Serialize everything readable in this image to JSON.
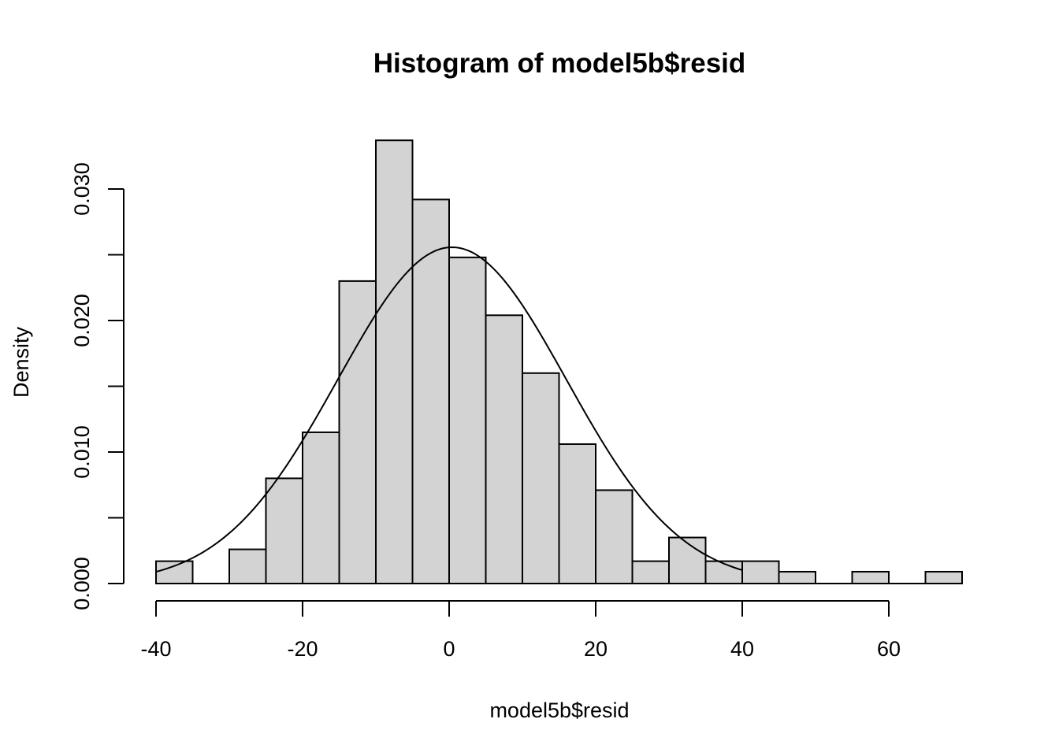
{
  "chart_data": {
    "type": "bar",
    "title": "Histogram of model5b$resid",
    "xlabel": "model5b$resid",
    "ylabel": "Density",
    "bins": [
      {
        "x0": -40,
        "x1": -35,
        "density": 0.0017
      },
      {
        "x0": -35,
        "x1": -30,
        "density": 0.0
      },
      {
        "x0": -30,
        "x1": -25,
        "density": 0.0026
      },
      {
        "x0": -25,
        "x1": -20,
        "density": 0.008
      },
      {
        "x0": -20,
        "x1": -15,
        "density": 0.0115
      },
      {
        "x0": -15,
        "x1": -10,
        "density": 0.023
      },
      {
        "x0": -10,
        "x1": -5,
        "density": 0.0337
      },
      {
        "x0": -5,
        "x1": 0,
        "density": 0.0292
      },
      {
        "x0": 0,
        "x1": 5,
        "density": 0.0248
      },
      {
        "x0": 5,
        "x1": 10,
        "density": 0.0204
      },
      {
        "x0": 10,
        "x1": 15,
        "density": 0.016
      },
      {
        "x0": 15,
        "x1": 20,
        "density": 0.0106
      },
      {
        "x0": 20,
        "x1": 25,
        "density": 0.0071
      },
      {
        "x0": 25,
        "x1": 30,
        "density": 0.0017
      },
      {
        "x0": 30,
        "x1": 35,
        "density": 0.0035
      },
      {
        "x0": 35,
        "x1": 40,
        "density": 0.0017
      },
      {
        "x0": 40,
        "x1": 45,
        "density": 0.0017
      },
      {
        "x0": 45,
        "x1": 50,
        "density": 0.0009
      },
      {
        "x0": 50,
        "x1": 55,
        "density": 0.0
      },
      {
        "x0": 55,
        "x1": 60,
        "density": 0.0009
      },
      {
        "x0": 60,
        "x1": 65,
        "density": 0.0
      },
      {
        "x0": 65,
        "x1": 70,
        "density": 0.0009
      }
    ],
    "density_curve": {
      "type": "normal",
      "mean": 0.4,
      "sd": 15.6,
      "x_range": [
        -40,
        40
      ]
    },
    "x_ticks": [
      "-40",
      "-20",
      "0",
      "20",
      "40",
      "60"
    ],
    "x_tick_values": [
      -40,
      -20,
      0,
      20,
      40,
      60
    ],
    "y_ticks": [
      "0.000",
      "0.010",
      "0.020",
      "0.030"
    ],
    "y_tick_values": [
      0.0,
      0.01,
      0.02,
      0.03
    ],
    "y_minor_tick_values": [
      0.005,
      0.015,
      0.025
    ],
    "xlim": [
      -40,
      70
    ],
    "ylim": [
      0,
      0.0337
    ],
    "bar_fill": "#d3d3d3",
    "stroke": "#000000",
    "grid": false
  }
}
